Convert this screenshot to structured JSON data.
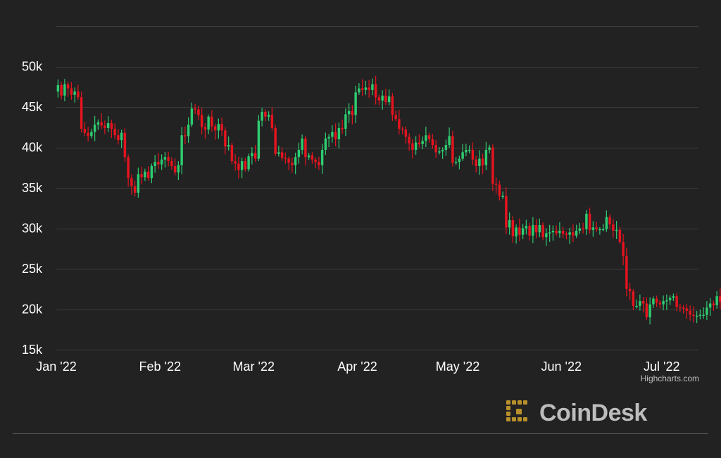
{
  "chart_data": {
    "type": "candlestick",
    "x_axis": {
      "type": "date",
      "min": "2022-01-01",
      "max": "2022-07-12",
      "tick_labels": [
        "Jan '22",
        "Feb '22",
        "Mar '22",
        "Apr '22",
        "May '22",
        "Jun '22",
        "Jul '22"
      ],
      "tick_dates": [
        "2022-01-01",
        "2022-02-01",
        "2022-03-01",
        "2022-04-01",
        "2022-05-01",
        "2022-06-01",
        "2022-07-01"
      ]
    },
    "y_axis": {
      "min": 15000,
      "max": 55000,
      "tick_values": [
        15000,
        20000,
        25000,
        30000,
        35000,
        40000,
        45000,
        50000
      ],
      "tick_labels": [
        "15k",
        "20k",
        "25k",
        "30k",
        "35k",
        "40k",
        "45k",
        "50k"
      ]
    },
    "grid": true,
    "colors": {
      "up": "#2ecc71",
      "down": "#e6141e",
      "grid": "#3d3d3d",
      "axis_text": "#ffffff"
    },
    "date_start": "2022-01-01",
    "closes": [
      47700,
      46400,
      47800,
      47300,
      46500,
      46900,
      46200,
      42300,
      41800,
      41400,
      41900,
      42800,
      43100,
      42700,
      42400,
      43000,
      42300,
      41500,
      40900,
      41800,
      38800,
      36200,
      35200,
      34400,
      36700,
      36300,
      37000,
      36200,
      37700,
      38200,
      37900,
      38500,
      38800,
      38300,
      37700,
      36900,
      37800,
      41500,
      41400,
      42800,
      44800,
      44700,
      44000,
      42500,
      42200,
      43800,
      42600,
      42100,
      42900,
      42100,
      40100,
      40300,
      38300,
      38000,
      37200,
      38300,
      37300,
      38900,
      39300,
      38600,
      43300,
      44400,
      43800,
      44000,
      42400,
      39200,
      39400,
      38700,
      38600,
      38100,
      37800,
      38800,
      39700,
      41100,
      38800,
      39000,
      38500,
      38200,
      37800,
      39700,
      41100,
      41300,
      41900,
      41000,
      42400,
      42300,
      44100,
      44500,
      44000,
      46800,
      47300,
      47100,
      47400,
      47100,
      47800,
      46200,
      45800,
      46400,
      45600,
      46300,
      44000,
      43500,
      42300,
      42200,
      41300,
      40500,
      39700,
      40600,
      40400,
      40800,
      41500,
      41000,
      40300,
      39400,
      39500,
      39700,
      40300,
      41400,
      38100,
      38200,
      38600,
      39400,
      39700,
      39700,
      38500,
      37700,
      38600,
      37800,
      39700,
      40000,
      35500,
      35400,
      34000,
      34000,
      30100,
      31000,
      29000,
      30100,
      29200,
      30000,
      30300,
      29100,
      30400,
      29500,
      30400,
      28900,
      29400,
      29500,
      29700,
      29400,
      29700,
      29300,
      29200,
      29500,
      29100,
      29700,
      30000,
      29900,
      31800,
      29800,
      30100,
      29900,
      29900,
      29900,
      31400,
      30500,
      29700,
      29800,
      28300,
      26600,
      22500,
      22200,
      20400,
      20400,
      21000,
      20700,
      19000,
      20600,
      21300,
      20800,
      20600,
      21000,
      21100,
      21400,
      21600,
      20300,
      20200,
      20100,
      19800,
      19300,
      19200,
      19200,
      19300,
      19300,
      20200,
      20700,
      20500,
      21600,
      20900,
      20500,
      19900,
      19500
    ]
  },
  "credits": "Highcharts.com",
  "logo": {
    "name": "coindesk-logo",
    "text": "CoinDesk",
    "mark_color": "#b8912b"
  }
}
